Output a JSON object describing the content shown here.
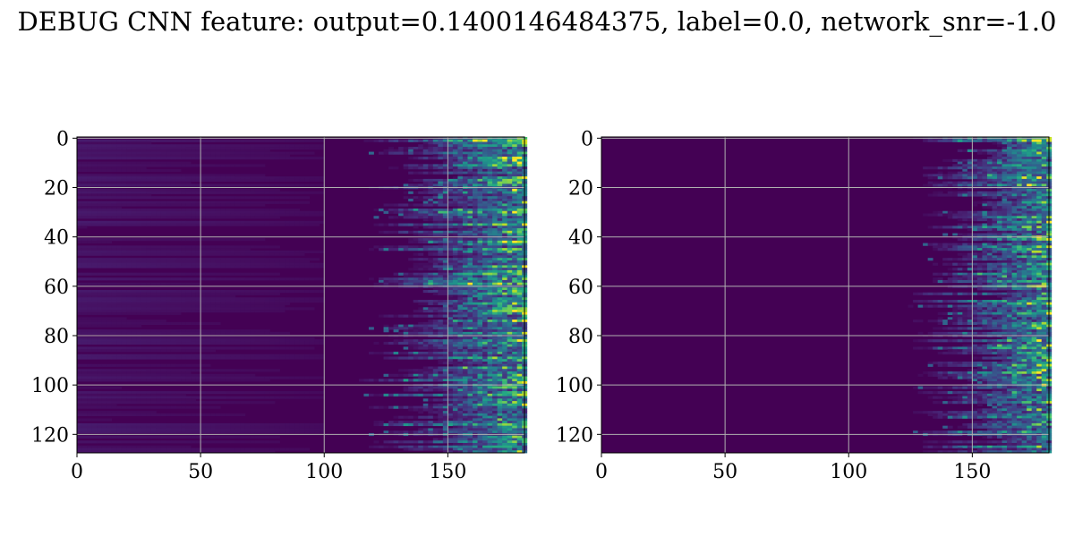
{
  "chart_data": {
    "title": "DEBUG CNN feature: output=0.1400146484375, label=0.0, network_snr=-1.0",
    "panels": [
      {
        "type": "heatmap",
        "colormap": "viridis",
        "xlim": [
          0,
          181
        ],
        "ylim": [
          128,
          0
        ],
        "xticks": [
          0,
          50,
          100,
          150
        ],
        "yticks": [
          0,
          20,
          40,
          60,
          80,
          100,
          120
        ],
        "grid": true,
        "rows": 128,
        "cols": 181,
        "activity_onset_col_range": [
          110,
          150
        ],
        "background_band_column_limit": 100,
        "max_intensity_col_range": [
          140,
          181
        ]
      },
      {
        "type": "heatmap",
        "colormap": "viridis",
        "xlim": [
          0,
          181
        ],
        "ylim": [
          128,
          0
        ],
        "xticks": [
          0,
          50,
          100,
          150
        ],
        "yticks": [
          0,
          20,
          40,
          60,
          80,
          100,
          120
        ],
        "grid": true,
        "rows": 128,
        "cols": 181,
        "activity_onset_col_range": [
          120,
          160
        ],
        "background_band_column_limit": 0,
        "max_intensity_col_range": [
          155,
          181
        ]
      }
    ]
  }
}
